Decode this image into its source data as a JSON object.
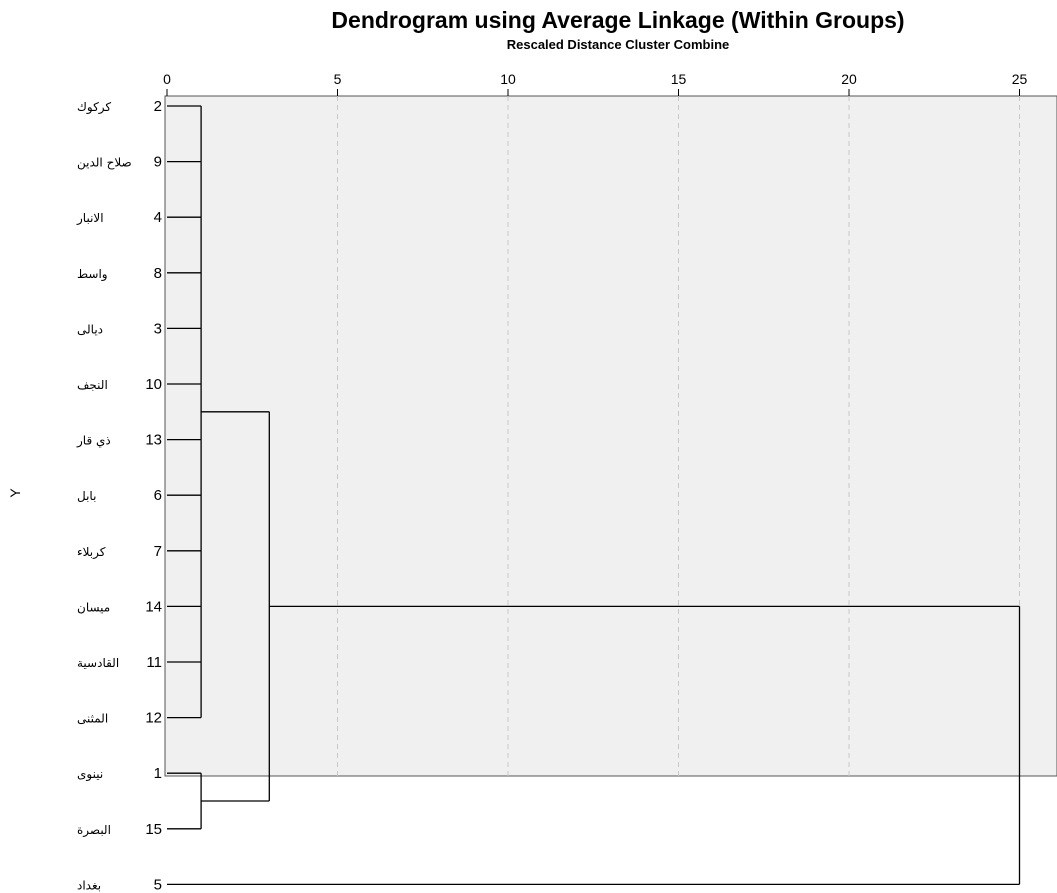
{
  "chart_data": {
    "type": "dendrogram",
    "title": "Dendrogram using Average Linkage (Within Groups)",
    "subtitle": "Rescaled Distance Cluster Combine",
    "ylabel": "Y",
    "x_ticks": [
      0,
      5,
      10,
      15,
      20,
      25
    ],
    "xlim": [
      0,
      25
    ],
    "grid": true,
    "colors": {
      "plot_background": "#f0f0f0",
      "grid": "#c8c8c8",
      "lines": "#000000"
    },
    "leaves": [
      {
        "case": "2",
        "label": "كركوك"
      },
      {
        "case": "9",
        "label": "صلاح الدين"
      },
      {
        "case": "4",
        "label": "الانبار"
      },
      {
        "case": "8",
        "label": "واسط"
      },
      {
        "case": "3",
        "label": "ديالى"
      },
      {
        "case": "10",
        "label": "النجف"
      },
      {
        "case": "13",
        "label": "ذي قار"
      },
      {
        "case": "6",
        "label": "بابل"
      },
      {
        "case": "7",
        "label": "كربلاء"
      },
      {
        "case": "14",
        "label": "ميسان"
      },
      {
        "case": "11",
        "label": "القادسية"
      },
      {
        "case": "12",
        "label": "المثنى"
      },
      {
        "case": "1",
        "label": "نينوى"
      },
      {
        "case": "15",
        "label": "البصرة"
      },
      {
        "case": "5",
        "label": "بغداد"
      }
    ],
    "merges": [
      {
        "leaves": [
          0,
          1,
          2,
          3,
          4,
          5,
          6,
          7,
          8,
          9,
          10,
          11
        ],
        "distance": 1
      },
      {
        "leaves": [
          12,
          13
        ],
        "distance": 1
      },
      {
        "clusters": [
          0,
          1
        ],
        "distance": 3
      },
      {
        "clusters": [
          2
        ],
        "leaves": [
          14
        ],
        "distance": 25
      }
    ]
  }
}
